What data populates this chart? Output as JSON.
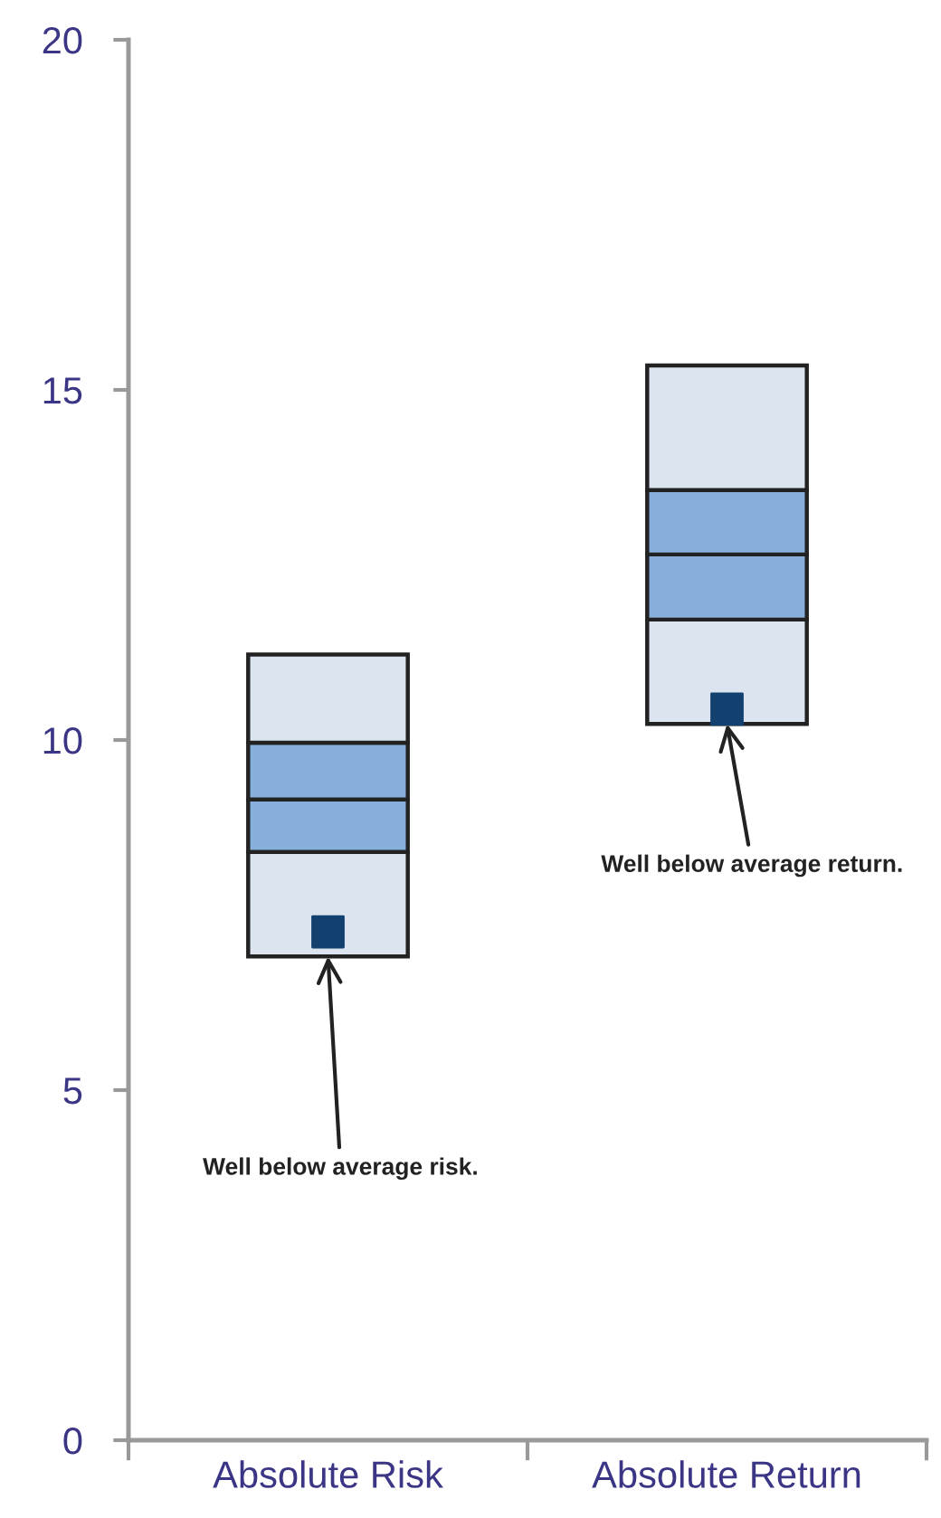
{
  "chart_data": {
    "type": "bar",
    "categories": [
      "Absolute Risk",
      "Absolute Return"
    ],
    "series": [
      {
        "color": "#dce4ef",
        "base": [
          6.91,
          10.23
        ],
        "values": [
          1.49,
          1.49
        ]
      },
      {
        "color": "#87afdc",
        "base": [
          8.4,
          11.72
        ],
        "values": [
          0.75,
          0.93
        ]
      },
      {
        "color": "#87afdc",
        "base": [
          9.15,
          12.65
        ],
        "values": [
          0.81,
          0.92
        ]
      },
      {
        "color": "#dce4ef",
        "base": [
          9.96,
          13.57
        ],
        "values": [
          1.26,
          1.78
        ]
      },
      {
        "type": "scatter",
        "marker": "square",
        "color": "#12406f",
        "x": [
          "Absolute Risk",
          "Absolute Return"
        ],
        "values": [
          7.26,
          10.44
        ]
      }
    ],
    "ylim": [
      0,
      20
    ],
    "yticks": [
      0,
      5,
      10,
      15,
      20
    ],
    "grid": false,
    "annotations": [
      {
        "text": "Well below average risk.",
        "x": "Absolute Risk",
        "y": 6.91
      },
      {
        "text": "Well below average return.",
        "x": "Absolute Return",
        "y": 10.23
      }
    ]
  }
}
